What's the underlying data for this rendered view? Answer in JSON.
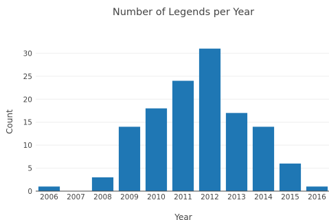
{
  "chart_data": {
    "type": "bar",
    "title": "Number of Legends per Year",
    "xlabel": "Year",
    "ylabel": "Count",
    "categories": [
      "2006",
      "2007",
      "2008",
      "2009",
      "2010",
      "2011",
      "2012",
      "2013",
      "2014",
      "2015",
      "2016"
    ],
    "values": [
      1,
      0,
      3,
      14,
      18,
      24,
      31,
      17,
      14,
      6,
      1
    ],
    "ylim": [
      0,
      32.6
    ],
    "yticks": [
      0,
      5,
      10,
      15,
      20,
      25,
      30
    ],
    "grid": true,
    "bar_color": "#1f77b4"
  }
}
